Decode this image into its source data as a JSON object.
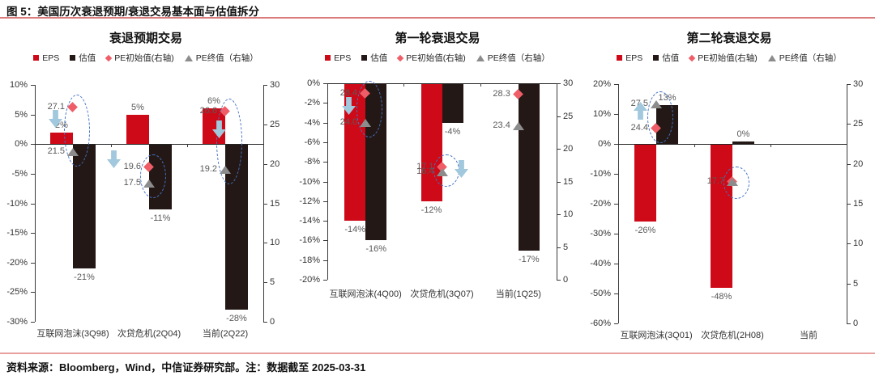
{
  "header": {
    "title": "图 5：美国历次衰退预期/衰退交易基本面与估值拆分"
  },
  "footer": {
    "text": "资料来源：Bloomberg，Wind，中信证券研究部。注：数据截至 2025-03-31"
  },
  "colors": {
    "eps_red": "#CE0A18",
    "valuation_black": "#231815",
    "pe_start_pink": "#EF5E68",
    "pe_end_gray": "#8C8C8C",
    "arrow_blue": "#A2C8DD",
    "ellipse_blue": "#4472C4",
    "label_gray": "#595959",
    "axis_dark": "#3a3a3a",
    "header_rule": "#DC7C7C",
    "footer_rule": "#E9A0A0"
  },
  "legend": {
    "items": [
      {
        "label": "EPS",
        "marker": "square-red"
      },
      {
        "label": "估值",
        "marker": "square-black"
      },
      {
        "label": "PE初始值(右轴)",
        "marker": "diamond-pink"
      },
      {
        "label": "PE终值（右轴）",
        "marker": "triangle-gray"
      }
    ]
  },
  "chart_data": [
    {
      "type": "bar",
      "title": "衰退预期交易",
      "categories": [
        "互联网泡沫(3Q98)",
        "次贷危机(2Q04)",
        "当前(2Q22)"
      ],
      "series": [
        {
          "name": "EPS",
          "values": [
            2,
            5,
            6
          ],
          "labels": [
            "2%",
            "5%",
            "6%"
          ]
        },
        {
          "name": "估值",
          "values": [
            -21,
            -11,
            -28
          ],
          "labels": [
            "-21%",
            "-11%",
            "-28%"
          ]
        }
      ],
      "markers": [
        {
          "name": "PE初始值(右轴)",
          "values": [
            27.1,
            19.6,
            26.6
          ],
          "labels": [
            "27.1",
            "19.6",
            "26.6"
          ]
        },
        {
          "name": "PE终值（右轴）",
          "values": [
            21.5,
            17.5,
            19.2
          ],
          "labels": [
            "21.5",
            "17.5",
            "19.2"
          ]
        }
      ],
      "axis_left": {
        "min": -30,
        "max": 10,
        "step": 5,
        "unit": "%"
      },
      "axis_right": {
        "min": 0,
        "max": 30,
        "step": 5,
        "unit": ""
      },
      "annotations": {
        "ellipses": [
          {
            "group": 0
          },
          {
            "group": 1
          },
          {
            "group": 2
          }
        ],
        "arrows": [
          {
            "group": 0,
            "dir": "down",
            "dx": -22,
            "dy": -14
          },
          {
            "group": 1,
            "dir": "down",
            "dx": -44,
            "dy": -20
          },
          {
            "group": 2,
            "dir": "down",
            "dx": -8,
            "dy": -14
          }
        ]
      }
    },
    {
      "type": "bar",
      "title": "第一轮衰退交易",
      "categories": [
        "互联网泡沫(4Q00)",
        "次贷危机(3Q07)",
        "当前(1Q25)"
      ],
      "series": [
        {
          "name": "EPS",
          "values": [
            -14,
            -12,
            null
          ],
          "labels": [
            "-14%",
            "-12%",
            null
          ]
        },
        {
          "name": "估值",
          "values": [
            -16,
            -4,
            -17
          ],
          "labels": [
            "-16%",
            "-4%",
            "-17%"
          ]
        }
      ],
      "markers": [
        {
          "name": "PE初始值(右轴)",
          "values": [
            28.4,
            17.1,
            28.3
          ],
          "labels": [
            "28.4",
            "17.1",
            "28.3"
          ]
        },
        {
          "name": "PE终值（右轴）",
          "values": [
            24.0,
            16.4,
            23.4
          ],
          "labels": [
            "24.0",
            "16.4",
            "23.4"
          ]
        }
      ],
      "axis_left": {
        "min": -20,
        "max": 0,
        "step": 2,
        "unit": "%"
      },
      "axis_right": {
        "min": 0,
        "max": 30,
        "step": 5,
        "unit": ""
      },
      "annotations": {
        "ellipses": [
          {
            "group": 0
          },
          {
            "group": 1
          }
        ],
        "arrows": [
          {
            "group": 0,
            "dir": "down",
            "dx": -21,
            "dy": -3
          },
          {
            "group": 1,
            "dir": "down",
            "dx": 23,
            "dy": -1
          }
        ]
      }
    },
    {
      "type": "bar",
      "title": "第二轮衰退交易",
      "categories": [
        "互联网泡沫(3Q01)",
        "次贷危机(2H08)",
        "当前"
      ],
      "series": [
        {
          "name": "EPS",
          "values": [
            -26,
            -48,
            null
          ],
          "labels": [
            "-26%",
            "-48%",
            null
          ]
        },
        {
          "name": "估值",
          "values": [
            13,
            0,
            null
          ],
          "labels": [
            "13%",
            "0%",
            null
          ]
        }
      ],
      "markers": [
        {
          "name": "PE初始值(右轴)",
          "values": [
            24.4,
            17.7,
            null
          ],
          "labels": [
            "24.4",
            "17.7",
            null
          ]
        },
        {
          "name": "PE终值（右轴）",
          "values": [
            27.5,
            17.7,
            null
          ],
          "labels": [
            "27.5",
            null,
            null
          ]
        }
      ],
      "axis_left": {
        "min": -60,
        "max": 20,
        "step": 10,
        "unit": "%"
      },
      "axis_right": {
        "min": 0,
        "max": 30,
        "step": 5,
        "unit": ""
      },
      "annotations": {
        "ellipses": [
          {
            "group": 0
          },
          {
            "group": 1
          }
        ],
        "arrows": [
          {
            "group": 0,
            "dir": "up",
            "dx": -20,
            "dy": -7
          }
        ]
      }
    }
  ]
}
